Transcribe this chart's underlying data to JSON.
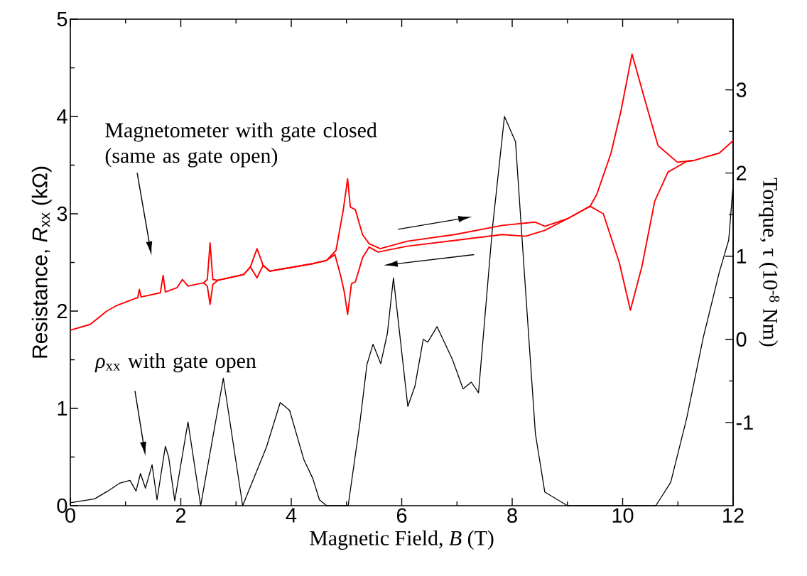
{
  "chart_data": {
    "type": "line",
    "xlabel": "Magnetic Field, *B* (T)",
    "ylabel": "Resistance, *R*$_{xx}$ (kΩ)",
    "y2label": "Torque, τ (10$^{-8}$ Nm)",
    "xlim": [
      0,
      12
    ],
    "xticks": [
      0,
      2,
      4,
      6,
      8,
      10,
      12
    ],
    "ylim": [
      0,
      5
    ],
    "yticks": [
      0,
      1,
      2,
      3,
      4,
      5
    ],
    "y2lim": [
      -2,
      3.85
    ],
    "y2ticks": [
      -1,
      0,
      1,
      2,
      3
    ],
    "annotations": [
      "Magnetometer with gate closed (same as gate open)",
      "*ρ*$_{xx}$ with gate open"
    ],
    "series": [
      {
        "color": "#000000",
        "x": [
          0,
          0.44,
          0.68,
          0.89,
          1.08,
          1.19,
          1.27,
          1.36,
          1.48,
          1.57,
          1.72,
          1.78,
          1.89,
          2.13,
          2.36,
          2.77,
          3.12,
          3.55,
          3.8,
          3.97,
          4.23,
          4.39,
          4.51,
          4.64,
          5.03,
          5.24,
          5.37,
          5.48,
          5.62,
          5.74,
          5.85,
          6.11,
          6.24,
          6.39,
          6.47,
          6.64,
          6.92,
          7.11,
          7.26,
          7.39,
          7.64,
          7.86,
          8.06,
          8.24,
          8.42,
          8.59,
          9.0,
          10.6,
          10.87,
          11.16,
          11.46,
          11.75,
          11.92,
          12
        ],
        "values": [
          0.03,
          0.07,
          0.15,
          0.23,
          0.26,
          0.15,
          0.33,
          0.18,
          0.42,
          0.06,
          0.61,
          0.5,
          0.05,
          0.86,
          0.0,
          1.31,
          0.0,
          0.6,
          1.06,
          0.98,
          0.47,
          0.28,
          0.06,
          0.0,
          0.0,
          0.84,
          1.45,
          1.66,
          1.46,
          1.77,
          2.34,
          1.02,
          1.23,
          1.71,
          1.68,
          1.84,
          1.5,
          1.2,
          1.27,
          1.16,
          2.84,
          4.0,
          3.74,
          2.23,
          0.74,
          0.14,
          0.0,
          0.0,
          0.24,
          0.9,
          1.73,
          2.4,
          2.73,
          3.3
        ]
      },
      {
        "color": "#ff0000",
        "axis": "y2",
        "x": [
          0,
          0.36,
          0.66,
          0.85,
          1.17,
          1.22,
          1.25,
          1.28,
          1.63,
          1.68,
          1.72,
          1.93,
          2.03,
          2.13,
          2.41,
          2.48,
          2.53,
          2.58,
          2.67,
          3.14,
          3.26,
          3.38,
          3.49,
          3.61,
          4.39,
          4.64,
          4.81,
          4.94,
          5.02,
          5.07,
          5.16,
          5.29,
          5.41,
          5.61,
          6.1,
          6.96,
          7.82,
          8.41,
          8.59,
          9.0,
          9.41,
          9.53,
          9.79,
          9.97,
          10.17,
          10.44,
          10.64,
          10.99,
          11.28,
          11.75,
          12
        ],
        "values": [
          0.11,
          0.18,
          0.34,
          0.41,
          0.49,
          0.5,
          0.6,
          0.51,
          0.56,
          0.77,
          0.57,
          0.62,
          0.72,
          0.64,
          0.68,
          0.72,
          1.16,
          0.72,
          0.71,
          0.78,
          0.87,
          1.09,
          0.89,
          0.82,
          0.91,
          0.95,
          1.07,
          1.55,
          1.93,
          1.59,
          1.56,
          1.26,
          1.15,
          1.09,
          1.18,
          1.26,
          1.37,
          1.41,
          1.36,
          1.45,
          1.6,
          1.74,
          2.24,
          2.75,
          3.43,
          2.79,
          2.33,
          2.13,
          2.15,
          2.24,
          2.39
        ]
      },
      {
        "color": "#ff0000",
        "axis": "y2",
        "x": [
          2.41,
          2.48,
          2.53,
          2.58,
          2.67,
          3.14,
          3.26,
          3.38,
          3.49,
          3.61,
          4.39,
          4.64,
          4.79,
          4.9,
          4.96,
          5.02,
          5.09,
          5.16,
          5.29,
          5.41,
          5.57,
          6.1,
          6.96,
          7.82,
          8.24,
          8.59,
          9.0,
          9.41,
          9.65,
          9.94,
          10.14,
          10.35,
          10.58,
          10.82,
          11.16,
          11.28
        ],
        "values": [
          0.68,
          0.64,
          0.42,
          0.66,
          0.71,
          0.78,
          0.87,
          0.74,
          0.89,
          0.82,
          0.91,
          0.95,
          1.02,
          0.75,
          0.57,
          0.3,
          0.67,
          0.69,
          0.98,
          1.11,
          1.05,
          1.12,
          1.19,
          1.26,
          1.24,
          1.31,
          1.45,
          1.6,
          1.51,
          0.92,
          0.35,
          0.88,
          1.66,
          2.01,
          2.14,
          2.15
        ]
      }
    ]
  }
}
